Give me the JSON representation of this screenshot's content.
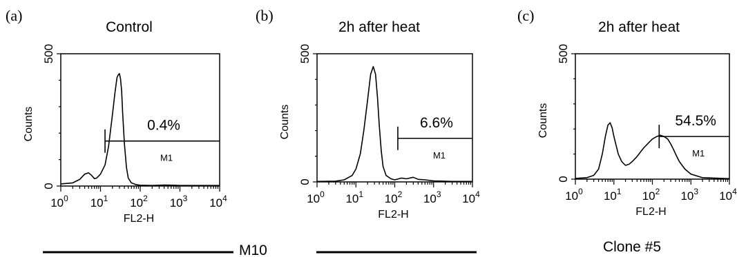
{
  "chart_data": [
    {
      "type": "line",
      "panel": "(a)",
      "title": "Control",
      "xlabel": "FL2-H",
      "ylabel": "Counts",
      "x_scale": "log",
      "xlim": [
        1,
        10000
      ],
      "ylim": [
        0,
        500
      ],
      "x_ticks": [
        1,
        10,
        100,
        1000,
        10000
      ],
      "x_tick_labels": [
        [
          "10",
          "0"
        ],
        [
          "10",
          "1"
        ],
        [
          "10",
          "2"
        ],
        [
          "10",
          "3"
        ],
        [
          "10",
          "4"
        ]
      ],
      "y_ticks": [
        0,
        500
      ],
      "y_tick_labels": [
        "0",
        "500"
      ],
      "gate": {
        "name": "M1",
        "percent": "0.4%",
        "start": 13,
        "end": 10000
      },
      "series": [
        {
          "x": [
            1,
            2,
            3,
            4,
            5,
            6,
            7,
            8,
            10,
            13,
            16,
            20,
            23,
            26,
            28,
            30,
            32,
            34,
            36,
            40,
            45,
            50,
            60,
            80,
            100,
            200,
            400,
            700,
            1000,
            10000
          ],
          "y": [
            8,
            12,
            25,
            45,
            50,
            40,
            28,
            30,
            45,
            80,
            150,
            270,
            350,
            410,
            420,
            425,
            405,
            360,
            280,
            160,
            70,
            30,
            12,
            5,
            3,
            2,
            4,
            3,
            2,
            2
          ]
        }
      ]
    },
    {
      "type": "line",
      "panel": "(b)",
      "title": "2h after heat",
      "xlabel": "FL2-H",
      "ylabel": "Counts",
      "x_scale": "log",
      "xlim": [
        1,
        10000
      ],
      "ylim": [
        0,
        500
      ],
      "x_ticks": [
        1,
        10,
        100,
        1000,
        10000
      ],
      "x_tick_labels": [
        [
          "10",
          "0"
        ],
        [
          "10",
          "1"
        ],
        [
          "10",
          "2"
        ],
        [
          "10",
          "3"
        ],
        [
          "10",
          "4"
        ]
      ],
      "y_ticks": [
        0,
        500
      ],
      "y_tick_labels": [
        "0",
        "500"
      ],
      "gate": {
        "name": "M1",
        "percent": "6.6%",
        "start": 120,
        "end": 10000
      },
      "series": [
        {
          "x": [
            1,
            3,
            5,
            8,
            10,
            13,
            16,
            20,
            24,
            28,
            32,
            36,
            40,
            45,
            50,
            60,
            80,
            100,
            150,
            200,
            300,
            400,
            600,
            1000,
            3000,
            10000
          ],
          "y": [
            2,
            3,
            8,
            25,
            50,
            110,
            200,
            320,
            420,
            450,
            420,
            330,
            220,
            120,
            60,
            25,
            12,
            8,
            15,
            12,
            18,
            10,
            8,
            4,
            2,
            2
          ]
        }
      ]
    },
    {
      "type": "line",
      "panel": "(c)",
      "title": "2h after heat",
      "xlabel": "FL2-H",
      "ylabel": "Counts",
      "x_scale": "log",
      "xlim": [
        1,
        10000
      ],
      "ylim": [
        0,
        500
      ],
      "x_ticks": [
        1,
        10,
        100,
        1000,
        10000
      ],
      "x_tick_labels": [
        [
          "10",
          "0"
        ],
        [
          "10",
          "1"
        ],
        [
          "10",
          "2"
        ],
        [
          "10",
          "3"
        ],
        [
          "10",
          "4"
        ]
      ],
      "y_ticks": [
        0,
        500
      ],
      "y_tick_labels": [
        "0",
        "500"
      ],
      "gate": {
        "name": "M1",
        "percent": "54.5%",
        "start": 150,
        "end": 10000
      },
      "series": [
        {
          "x": [
            1,
            2,
            3,
            4,
            5,
            6,
            7,
            8,
            9,
            10,
            13,
            16,
            20,
            25,
            30,
            40,
            50,
            60,
            80,
            100,
            130,
            160,
            200,
            250,
            300,
            350,
            400,
            500,
            700,
            1000,
            2000,
            10000
          ],
          "y": [
            3,
            6,
            15,
            40,
            100,
            170,
            215,
            225,
            205,
            170,
            100,
            70,
            55,
            60,
            70,
            90,
            110,
            125,
            145,
            160,
            170,
            175,
            170,
            160,
            140,
            120,
            100,
            70,
            40,
            20,
            6,
            2
          ]
        }
      ]
    }
  ],
  "captions": {
    "m10": "M10",
    "clone": "Clone #5"
  }
}
